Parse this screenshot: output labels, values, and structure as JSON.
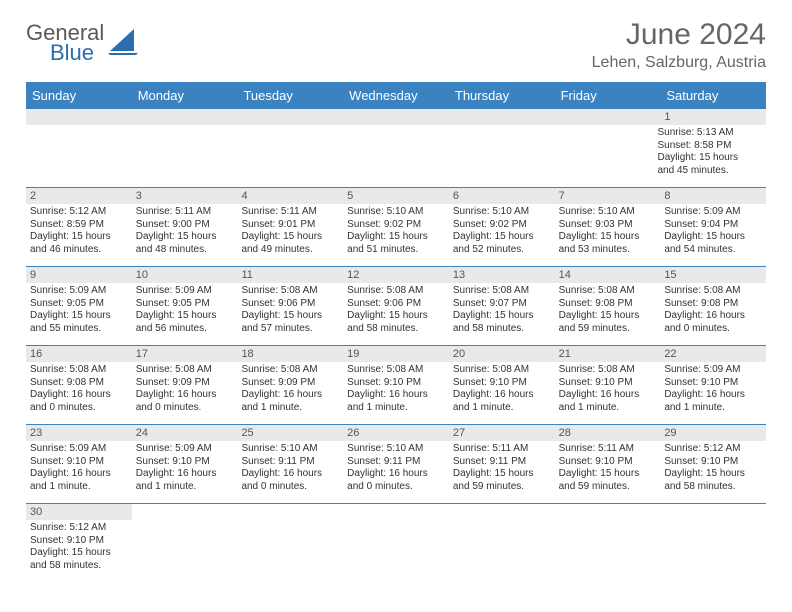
{
  "colors": {
    "header_bar": "#3b83c0",
    "logo_blue": "#2a6db0",
    "week_divider": "#3b83c0",
    "daynum_bg": "#e9e9e9",
    "text": "#333333",
    "title": "#666666"
  },
  "brand": {
    "text_main": "General",
    "text_sub": "Blue"
  },
  "title": "June 2024",
  "subtitle": "Lehen, Salzburg, Austria",
  "day_names": [
    "Sunday",
    "Monday",
    "Tuesday",
    "Wednesday",
    "Thursday",
    "Friday",
    "Saturday"
  ],
  "weeks": [
    {
      "nums": [
        "",
        "",
        "",
        "",
        "",
        "",
        "1"
      ],
      "cells": [
        null,
        null,
        null,
        null,
        null,
        null,
        {
          "sunrise": "5:13 AM",
          "sunset": "8:58 PM",
          "daylight": "15 hours and 45 minutes."
        }
      ]
    },
    {
      "nums": [
        "2",
        "3",
        "4",
        "5",
        "6",
        "7",
        "8"
      ],
      "cells": [
        {
          "sunrise": "5:12 AM",
          "sunset": "8:59 PM",
          "daylight": "15 hours and 46 minutes."
        },
        {
          "sunrise": "5:11 AM",
          "sunset": "9:00 PM",
          "daylight": "15 hours and 48 minutes."
        },
        {
          "sunrise": "5:11 AM",
          "sunset": "9:01 PM",
          "daylight": "15 hours and 49 minutes."
        },
        {
          "sunrise": "5:10 AM",
          "sunset": "9:02 PM",
          "daylight": "15 hours and 51 minutes."
        },
        {
          "sunrise": "5:10 AM",
          "sunset": "9:02 PM",
          "daylight": "15 hours and 52 minutes."
        },
        {
          "sunrise": "5:10 AM",
          "sunset": "9:03 PM",
          "daylight": "15 hours and 53 minutes."
        },
        {
          "sunrise": "5:09 AM",
          "sunset": "9:04 PM",
          "daylight": "15 hours and 54 minutes."
        }
      ]
    },
    {
      "nums": [
        "9",
        "10",
        "11",
        "12",
        "13",
        "14",
        "15"
      ],
      "cells": [
        {
          "sunrise": "5:09 AM",
          "sunset": "9:05 PM",
          "daylight": "15 hours and 55 minutes."
        },
        {
          "sunrise": "5:09 AM",
          "sunset": "9:05 PM",
          "daylight": "15 hours and 56 minutes."
        },
        {
          "sunrise": "5:08 AM",
          "sunset": "9:06 PM",
          "daylight": "15 hours and 57 minutes."
        },
        {
          "sunrise": "5:08 AM",
          "sunset": "9:06 PM",
          "daylight": "15 hours and 58 minutes."
        },
        {
          "sunrise": "5:08 AM",
          "sunset": "9:07 PM",
          "daylight": "15 hours and 58 minutes."
        },
        {
          "sunrise": "5:08 AM",
          "sunset": "9:08 PM",
          "daylight": "15 hours and 59 minutes."
        },
        {
          "sunrise": "5:08 AM",
          "sunset": "9:08 PM",
          "daylight": "16 hours and 0 minutes."
        }
      ]
    },
    {
      "nums": [
        "16",
        "17",
        "18",
        "19",
        "20",
        "21",
        "22"
      ],
      "cells": [
        {
          "sunrise": "5:08 AM",
          "sunset": "9:08 PM",
          "daylight": "16 hours and 0 minutes."
        },
        {
          "sunrise": "5:08 AM",
          "sunset": "9:09 PM",
          "daylight": "16 hours and 0 minutes."
        },
        {
          "sunrise": "5:08 AM",
          "sunset": "9:09 PM",
          "daylight": "16 hours and 1 minute."
        },
        {
          "sunrise": "5:08 AM",
          "sunset": "9:10 PM",
          "daylight": "16 hours and 1 minute."
        },
        {
          "sunrise": "5:08 AM",
          "sunset": "9:10 PM",
          "daylight": "16 hours and 1 minute."
        },
        {
          "sunrise": "5:08 AM",
          "sunset": "9:10 PM",
          "daylight": "16 hours and 1 minute."
        },
        {
          "sunrise": "5:09 AM",
          "sunset": "9:10 PM",
          "daylight": "16 hours and 1 minute."
        }
      ]
    },
    {
      "nums": [
        "23",
        "24",
        "25",
        "26",
        "27",
        "28",
        "29"
      ],
      "cells": [
        {
          "sunrise": "5:09 AM",
          "sunset": "9:10 PM",
          "daylight": "16 hours and 1 minute."
        },
        {
          "sunrise": "5:09 AM",
          "sunset": "9:10 PM",
          "daylight": "16 hours and 1 minute."
        },
        {
          "sunrise": "5:10 AM",
          "sunset": "9:11 PM",
          "daylight": "16 hours and 0 minutes."
        },
        {
          "sunrise": "5:10 AM",
          "sunset": "9:11 PM",
          "daylight": "16 hours and 0 minutes."
        },
        {
          "sunrise": "5:11 AM",
          "sunset": "9:11 PM",
          "daylight": "15 hours and 59 minutes."
        },
        {
          "sunrise": "5:11 AM",
          "sunset": "9:10 PM",
          "daylight": "15 hours and 59 minutes."
        },
        {
          "sunrise": "5:12 AM",
          "sunset": "9:10 PM",
          "daylight": "15 hours and 58 minutes."
        }
      ]
    },
    {
      "nums": [
        "30",
        "",
        "",
        "",
        "",
        "",
        ""
      ],
      "cells": [
        {
          "sunrise": "5:12 AM",
          "sunset": "9:10 PM",
          "daylight": "15 hours and 58 minutes."
        },
        null,
        null,
        null,
        null,
        null,
        null
      ]
    }
  ],
  "labels": {
    "sunrise": "Sunrise: ",
    "sunset": "Sunset: ",
    "daylight": "Daylight: "
  }
}
